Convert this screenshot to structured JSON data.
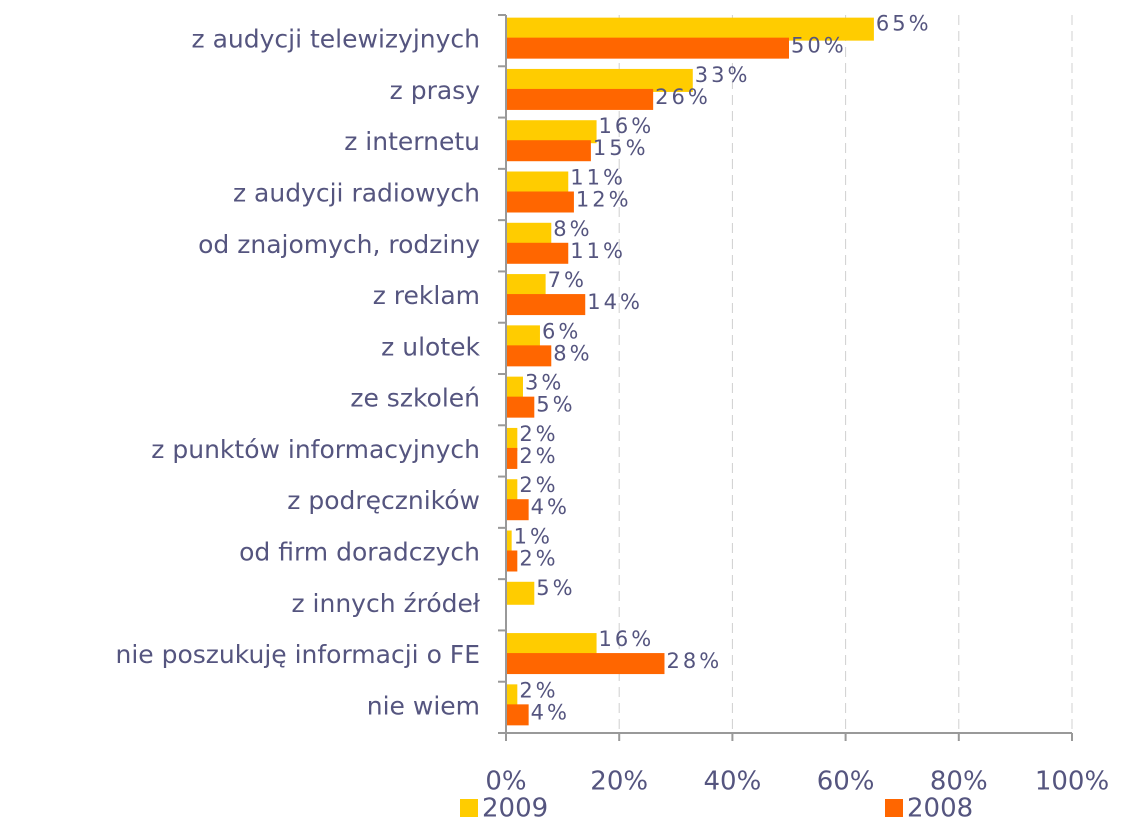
{
  "chart_data": {
    "type": "bar",
    "orientation": "horizontal",
    "categories": [
      "z audycji telewizyjnych",
      "z prasy",
      "z internetu",
      "z audycji radiowych",
      "od znajomych, rodziny",
      "z reklam",
      "z ulotek",
      "ze szkoleń",
      "z punktów informacyjnych",
      "z podręczników",
      "od firm doradczych",
      "z innych źródeł",
      "nie poszukuję informacji o FE",
      "nie wiem"
    ],
    "series": [
      {
        "name": "2009",
        "color": "#ffcc00",
        "values": [
          65,
          33,
          16,
          11,
          8,
          7,
          6,
          3,
          2,
          2,
          1,
          5,
          16,
          2
        ],
        "value_labels": [
          "65%",
          "33%",
          "16%",
          "11%",
          "8%",
          "7%",
          "6%",
          "3%",
          "2%",
          "2%",
          "1%",
          "5%",
          "16%",
          "2%"
        ]
      },
      {
        "name": "2008",
        "color": "#ff6600",
        "values": [
          50,
          26,
          15,
          12,
          11,
          14,
          8,
          5,
          2,
          4,
          2,
          null,
          28,
          4
        ],
        "value_labels": [
          "50%",
          "26%",
          "15%",
          "12%",
          "11%",
          "14%",
          "8%",
          "5%",
          "2%",
          "4%",
          "2%",
          null,
          "28%",
          "4%"
        ]
      }
    ],
    "xlim": [
      0,
      100
    ],
    "xticks": [
      {
        "value": 0,
        "label": "0%"
      },
      {
        "value": 20,
        "label": "20%"
      },
      {
        "value": 40,
        "label": "40%"
      },
      {
        "value": 60,
        "label": "60%"
      },
      {
        "value": 80,
        "label": "80%"
      },
      {
        "value": 100,
        "label": "100%"
      }
    ],
    "grid": true
  }
}
